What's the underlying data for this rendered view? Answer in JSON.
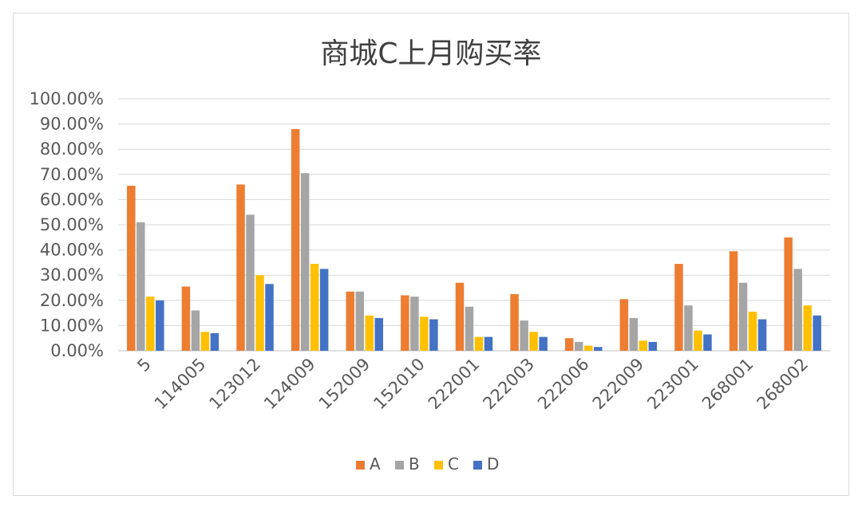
{
  "chart_data": {
    "type": "bar",
    "title": "商城C上月购买率",
    "xlabel": "",
    "ylabel": "",
    "ylim": [
      0,
      100
    ],
    "y_ticks": [
      "0.00%",
      "10.00%",
      "20.00%",
      "30.00%",
      "40.00%",
      "50.00%",
      "60.00%",
      "70.00%",
      "80.00%",
      "90.00%",
      "100.00%"
    ],
    "grid": true,
    "legend_position": "bottom",
    "categories": [
      "5",
      "114005",
      "123012",
      "124009",
      "152009",
      "152010",
      "222001",
      "222003",
      "222006",
      "222009",
      "223001",
      "268001",
      "268002"
    ],
    "series": [
      {
        "name": "A",
        "color": "#ED7D31",
        "values": [
          65.5,
          25.5,
          66.0,
          88.0,
          23.5,
          22.0,
          27.0,
          22.5,
          5.0,
          20.5,
          34.5,
          39.5,
          45.0
        ]
      },
      {
        "name": "B",
        "color": "#A5A5A5",
        "values": [
          51.0,
          16.0,
          54.0,
          70.5,
          23.5,
          21.5,
          17.5,
          12.0,
          3.5,
          13.0,
          18.0,
          27.0,
          32.5
        ]
      },
      {
        "name": "C",
        "color": "#FFC000",
        "values": [
          21.5,
          7.5,
          30.0,
          34.5,
          14.0,
          13.5,
          5.5,
          7.5,
          2.0,
          4.0,
          8.0,
          15.5,
          18.0
        ]
      },
      {
        "name": "D",
        "color": "#4472C4",
        "values": [
          20.0,
          7.0,
          26.5,
          32.5,
          13.0,
          12.5,
          5.5,
          5.5,
          1.5,
          3.5,
          6.5,
          12.5,
          14.0
        ]
      }
    ]
  }
}
